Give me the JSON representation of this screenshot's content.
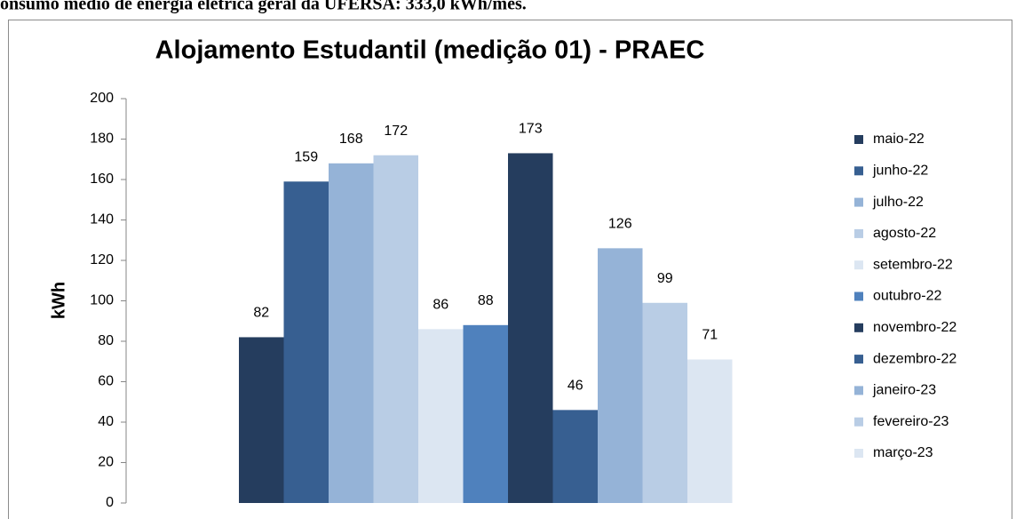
{
  "header_text": "onsumo médio de energia elétrica geral da UFERSA: 333,0 kWh/mês.",
  "chart_data": {
    "type": "bar",
    "title": "Alojamento Estudantil (medição 01) - PRAEC",
    "y_label": "kWh",
    "categories": [
      null
    ],
    "series": [
      {
        "name": "maio-22",
        "color": "#253d5e",
        "values": [
          82
        ]
      },
      {
        "name": "junho-22",
        "color": "#375f91",
        "values": [
          159
        ]
      },
      {
        "name": "julho-22",
        "color": "#95b3d7",
        "values": [
          168
        ]
      },
      {
        "name": "agosto-22",
        "color": "#b9cde5",
        "values": [
          172
        ]
      },
      {
        "name": "setembro-22",
        "color": "#dce6f2",
        "values": [
          86
        ]
      },
      {
        "name": "outubro-22",
        "color": "#4f81bd",
        "values": [
          88
        ]
      },
      {
        "name": "novembro-22",
        "color": "#253d5e",
        "values": [
          173
        ]
      },
      {
        "name": "dezembro-22",
        "color": "#375f91",
        "values": [
          46
        ]
      },
      {
        "name": "janeiro-23",
        "color": "#95b3d7",
        "values": [
          126
        ]
      },
      {
        "name": "fevereiro-23",
        "color": "#b9cde5",
        "values": [
          99
        ]
      },
      {
        "name": "março-23",
        "color": "#dce6f2",
        "values": [
          71
        ]
      }
    ],
    "ylim": [
      0,
      200
    ],
    "yticks": [
      0,
      20,
      40,
      60,
      80,
      100,
      120,
      140,
      160,
      180,
      200
    ],
    "grid": false,
    "legend": "right"
  }
}
